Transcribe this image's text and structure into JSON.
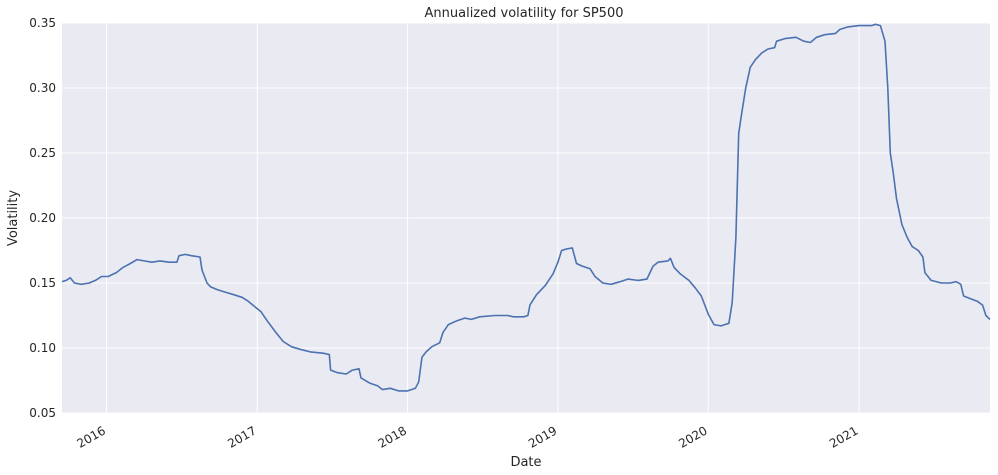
{
  "chart_data": {
    "type": "line",
    "title": "Annualized volatility for SP500",
    "xlabel": "Date",
    "ylabel": "Volatility",
    "xlim": [
      "2015-09-15",
      "2021-11-15"
    ],
    "ylim": [
      0.05,
      0.35
    ],
    "x_ticks": [
      "2016",
      "2017",
      "2018",
      "2019",
      "2020",
      "2021"
    ],
    "y_ticks": [
      "0.05",
      "0.10",
      "0.15",
      "0.20",
      "0.25",
      "0.30",
      "0.35"
    ],
    "grid": true,
    "colors": {
      "background": "#EAEAF2",
      "grid": "#FFFFFF",
      "line": "#4C72B0"
    },
    "series": [
      {
        "points": [
          [
            "2015-09-15",
            0.151
          ],
          [
            "2015-09-25",
            0.152
          ],
          [
            "2015-10-05",
            0.154
          ],
          [
            "2015-10-15",
            0.15
          ],
          [
            "2015-11-01",
            0.149
          ],
          [
            "2015-11-20",
            0.15
          ],
          [
            "2015-12-05",
            0.152
          ],
          [
            "2015-12-20",
            0.155
          ],
          [
            "2016-01-05",
            0.155
          ],
          [
            "2016-01-25",
            0.158
          ],
          [
            "2016-02-10",
            0.162
          ],
          [
            "2016-02-28",
            0.165
          ],
          [
            "2016-03-15",
            0.168
          ],
          [
            "2016-04-01",
            0.167
          ],
          [
            "2016-04-20",
            0.166
          ],
          [
            "2016-05-10",
            0.167
          ],
          [
            "2016-06-01",
            0.166
          ],
          [
            "2016-06-20",
            0.166
          ],
          [
            "2016-06-25",
            0.171
          ],
          [
            "2016-07-10",
            0.172
          ],
          [
            "2016-07-25",
            0.171
          ],
          [
            "2016-08-15",
            0.17
          ],
          [
            "2016-08-20",
            0.16
          ],
          [
            "2016-09-01",
            0.15
          ],
          [
            "2016-09-10",
            0.147
          ],
          [
            "2016-09-25",
            0.145
          ],
          [
            "2016-10-15",
            0.143
          ],
          [
            "2016-11-05",
            0.141
          ],
          [
            "2016-11-25",
            0.139
          ],
          [
            "2016-12-10",
            0.136
          ],
          [
            "2016-12-25",
            0.132
          ],
          [
            "2017-01-10",
            0.128
          ],
          [
            "2017-01-25",
            0.121
          ],
          [
            "2017-02-15",
            0.112
          ],
          [
            "2017-03-05",
            0.105
          ],
          [
            "2017-03-25",
            0.101
          ],
          [
            "2017-04-15",
            0.099
          ],
          [
            "2017-05-10",
            0.097
          ],
          [
            "2017-06-10",
            0.096
          ],
          [
            "2017-06-25",
            0.095
          ],
          [
            "2017-06-28",
            0.083
          ],
          [
            "2017-07-15",
            0.081
          ],
          [
            "2017-08-05",
            0.08
          ],
          [
            "2017-08-20",
            0.083
          ],
          [
            "2017-09-05",
            0.084
          ],
          [
            "2017-09-10",
            0.077
          ],
          [
            "2017-10-01",
            0.073
          ],
          [
            "2017-10-20",
            0.071
          ],
          [
            "2017-11-01",
            0.068
          ],
          [
            "2017-11-20",
            0.069
          ],
          [
            "2017-12-10",
            0.067
          ],
          [
            "2018-01-01",
            0.067
          ],
          [
            "2018-01-20",
            0.069
          ],
          [
            "2018-01-28",
            0.074
          ],
          [
            "2018-02-05",
            0.093
          ],
          [
            "2018-02-15",
            0.097
          ],
          [
            "2018-03-01",
            0.101
          ],
          [
            "2018-03-20",
            0.104
          ],
          [
            "2018-03-28",
            0.112
          ],
          [
            "2018-04-10",
            0.118
          ],
          [
            "2018-05-01",
            0.121
          ],
          [
            "2018-05-20",
            0.123
          ],
          [
            "2018-06-05",
            0.122
          ],
          [
            "2018-06-25",
            0.124
          ],
          [
            "2018-08-01",
            0.125
          ],
          [
            "2018-09-01",
            0.125
          ],
          [
            "2018-09-15",
            0.124
          ],
          [
            "2018-10-10",
            0.124
          ],
          [
            "2018-10-20",
            0.125
          ],
          [
            "2018-10-25",
            0.133
          ],
          [
            "2018-11-10",
            0.141
          ],
          [
            "2018-12-01",
            0.148
          ],
          [
            "2018-12-20",
            0.157
          ],
          [
            "2019-01-01",
            0.166
          ],
          [
            "2019-01-10",
            0.175
          ],
          [
            "2019-01-20",
            0.176
          ],
          [
            "2019-02-05",
            0.177
          ],
          [
            "2019-02-15",
            0.165
          ],
          [
            "2019-03-01",
            0.163
          ],
          [
            "2019-03-20",
            0.161
          ],
          [
            "2019-04-01",
            0.155
          ],
          [
            "2019-04-20",
            0.15
          ],
          [
            "2019-05-10",
            0.149
          ],
          [
            "2019-06-01",
            0.151
          ],
          [
            "2019-06-20",
            0.153
          ],
          [
            "2019-07-15",
            0.152
          ],
          [
            "2019-08-05",
            0.153
          ],
          [
            "2019-08-20",
            0.163
          ],
          [
            "2019-09-01",
            0.166
          ],
          [
            "2019-09-25",
            0.167
          ],
          [
            "2019-10-01",
            0.169
          ],
          [
            "2019-10-10",
            0.162
          ],
          [
            "2019-10-25",
            0.157
          ],
          [
            "2019-11-15",
            0.152
          ],
          [
            "2019-12-01",
            0.146
          ],
          [
            "2019-12-15",
            0.14
          ],
          [
            "2020-01-01",
            0.126
          ],
          [
            "2020-01-15",
            0.118
          ],
          [
            "2020-02-01",
            0.117
          ],
          [
            "2020-02-10",
            0.118
          ],
          [
            "2020-02-20",
            0.119
          ],
          [
            "2020-02-28",
            0.135
          ],
          [
            "2020-03-08",
            0.185
          ],
          [
            "2020-03-15",
            0.265
          ],
          [
            "2020-03-22",
            0.28
          ],
          [
            "2020-04-01",
            0.3
          ],
          [
            "2020-04-12",
            0.316
          ],
          [
            "2020-04-25",
            0.322
          ],
          [
            "2020-05-10",
            0.327
          ],
          [
            "2020-05-25",
            0.33
          ],
          [
            "2020-06-10",
            0.331
          ],
          [
            "2020-06-15",
            0.336
          ],
          [
            "2020-07-05",
            0.338
          ],
          [
            "2020-08-01",
            0.339
          ],
          [
            "2020-08-20",
            0.336
          ],
          [
            "2020-09-05",
            0.335
          ],
          [
            "2020-09-20",
            0.339
          ],
          [
            "2020-10-10",
            0.341
          ],
          [
            "2020-11-05",
            0.342
          ],
          [
            "2020-11-15",
            0.345
          ],
          [
            "2020-12-05",
            0.347
          ],
          [
            "2021-01-01",
            0.348
          ],
          [
            "2021-01-31",
            0.348
          ],
          [
            "2021-02-10",
            0.349
          ],
          [
            "2021-02-22",
            0.348
          ],
          [
            "2021-03-05",
            0.336
          ],
          [
            "2021-03-12",
            0.3
          ],
          [
            "2021-03-18",
            0.25
          ],
          [
            "2021-03-25",
            0.235
          ],
          [
            "2021-04-02",
            0.215
          ],
          [
            "2021-04-15",
            0.195
          ],
          [
            "2021-04-28",
            0.185
          ],
          [
            "2021-05-10",
            0.178
          ],
          [
            "2021-05-25",
            0.175
          ],
          [
            "2021-06-05",
            0.17
          ],
          [
            "2021-06-10",
            0.158
          ],
          [
            "2021-06-25",
            0.152
          ],
          [
            "2021-07-20",
            0.15
          ],
          [
            "2021-08-10",
            0.15
          ],
          [
            "2021-08-25",
            0.151
          ],
          [
            "2021-09-05",
            0.149
          ],
          [
            "2021-09-12",
            0.14
          ],
          [
            "2021-09-28",
            0.138
          ],
          [
            "2021-10-15",
            0.136
          ],
          [
            "2021-10-28",
            0.133
          ],
          [
            "2021-11-05",
            0.125
          ],
          [
            "2021-11-15",
            0.122
          ]
        ]
      }
    ]
  }
}
